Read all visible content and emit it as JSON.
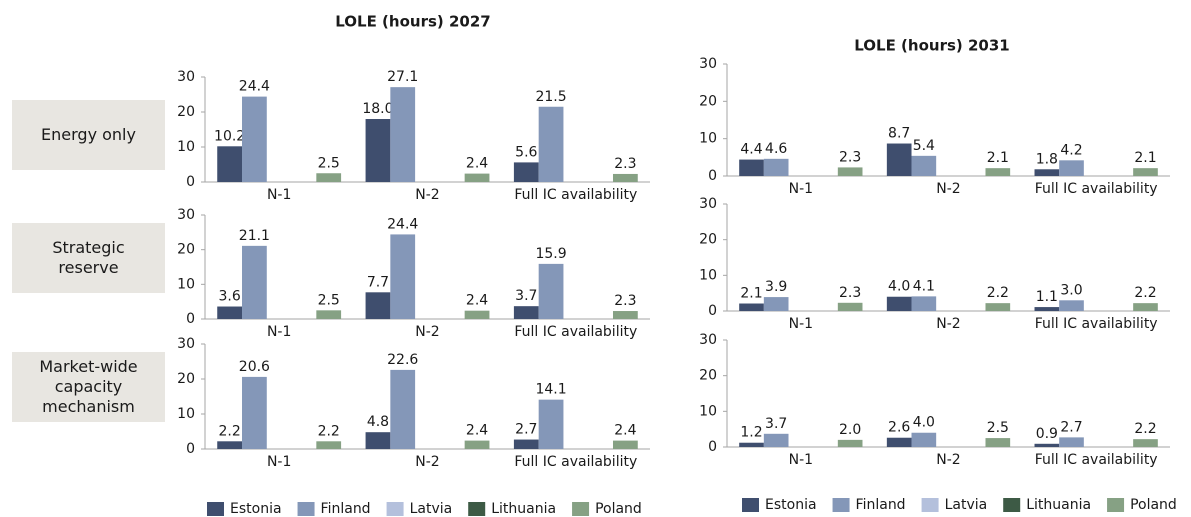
{
  "row_labels": [
    "Energy only",
    "Strategic reserve",
    "Market-wide capacity mechanism"
  ],
  "chart_data": [
    {
      "type": "bar",
      "title": "LOLE (hours) 2027",
      "categories": [
        "N-1",
        "N-2",
        "Full IC availability"
      ],
      "ylim": [
        0,
        30
      ],
      "yticks": [
        0,
        10,
        20,
        30
      ],
      "series": [
        {
          "name": "Estonia",
          "color": "#3f4e6e",
          "values": [
            10.2,
            18.0,
            5.6
          ],
          "value_labels": [
            "10.2",
            "18.0",
            "5.6"
          ]
        },
        {
          "name": "Finland",
          "color": "#8497b8",
          "values": [
            24.4,
            27.1,
            21.5
          ],
          "value_labels": [
            "24.4",
            "27.1",
            "21.5"
          ]
        },
        {
          "name": "Latvia",
          "color": "#b4c0dc",
          "values": [
            null,
            null,
            null
          ]
        },
        {
          "name": "Lithuania",
          "color": "#3d5a45",
          "values": [
            null,
            null,
            null
          ]
        },
        {
          "name": "Poland",
          "color": "#86a184",
          "values": [
            2.5,
            2.4,
            2.3
          ],
          "value_labels": [
            "2.5",
            "2.4",
            "2.3"
          ]
        }
      ]
    },
    {
      "type": "bar",
      "categories": [
        "N-1",
        "N-2",
        "Full IC availability"
      ],
      "ylim": [
        0,
        30
      ],
      "yticks": [
        0,
        10,
        20,
        30
      ],
      "series": [
        {
          "name": "Estonia",
          "color": "#3f4e6e",
          "values": [
            3.6,
            7.7,
            3.7
          ],
          "value_labels": [
            "3.6",
            "7.7",
            "3.7"
          ]
        },
        {
          "name": "Finland",
          "color": "#8497b8",
          "values": [
            21.1,
            24.4,
            15.9
          ],
          "value_labels": [
            "21.1",
            "24.4",
            "15.9"
          ]
        },
        {
          "name": "Latvia",
          "color": "#b4c0dc",
          "values": [
            null,
            null,
            null
          ]
        },
        {
          "name": "Lithuania",
          "color": "#3d5a45",
          "values": [
            null,
            null,
            null
          ]
        },
        {
          "name": "Poland",
          "color": "#86a184",
          "values": [
            2.5,
            2.4,
            2.3
          ],
          "value_labels": [
            "2.5",
            "2.4",
            "2.3"
          ]
        }
      ]
    },
    {
      "type": "bar",
      "categories": [
        "N-1",
        "N-2",
        "Full IC availability"
      ],
      "ylim": [
        0,
        30
      ],
      "yticks": [
        0,
        10,
        20,
        30
      ],
      "legend": "bottom",
      "series": [
        {
          "name": "Estonia",
          "color": "#3f4e6e",
          "values": [
            2.2,
            4.8,
            2.7
          ],
          "value_labels": [
            "2.2",
            "4.8",
            "2.7"
          ]
        },
        {
          "name": "Finland",
          "color": "#8497b8",
          "values": [
            20.6,
            22.6,
            14.1
          ],
          "value_labels": [
            "20.6",
            "22.6",
            "14.1"
          ]
        },
        {
          "name": "Latvia",
          "color": "#b4c0dc",
          "values": [
            null,
            null,
            null
          ]
        },
        {
          "name": "Lithuania",
          "color": "#3d5a45",
          "values": [
            null,
            null,
            null
          ]
        },
        {
          "name": "Poland",
          "color": "#86a184",
          "values": [
            2.2,
            2.4,
            2.4
          ],
          "value_labels": [
            "2.2",
            "2.4",
            "2.4"
          ]
        }
      ]
    },
    {
      "type": "bar",
      "title": "LOLE (hours) 2031",
      "categories": [
        "N-1",
        "N-2",
        "Full IC availability"
      ],
      "ylim": [
        0,
        30
      ],
      "yticks": [
        0,
        10,
        20,
        30
      ],
      "series": [
        {
          "name": "Estonia",
          "color": "#3f4e6e",
          "values": [
            4.4,
            8.7,
            1.8
          ],
          "value_labels": [
            "4.4",
            "8.7",
            "1.8"
          ]
        },
        {
          "name": "Finland",
          "color": "#8497b8",
          "values": [
            4.6,
            5.4,
            4.2
          ],
          "value_labels": [
            "4.6",
            "5.4",
            "4.2"
          ]
        },
        {
          "name": "Latvia",
          "color": "#b4c0dc",
          "values": [
            null,
            null,
            null
          ]
        },
        {
          "name": "Lithuania",
          "color": "#3d5a45",
          "values": [
            null,
            null,
            null
          ]
        },
        {
          "name": "Poland",
          "color": "#86a184",
          "values": [
            2.3,
            2.1,
            2.1
          ],
          "value_labels": [
            "2.3",
            "2.1",
            "2.1"
          ]
        }
      ]
    },
    {
      "type": "bar",
      "categories": [
        "N-1",
        "N-2",
        "Full IC availability"
      ],
      "ylim": [
        0,
        30
      ],
      "yticks": [
        0,
        10,
        20,
        30
      ],
      "series": [
        {
          "name": "Estonia",
          "color": "#3f4e6e",
          "values": [
            2.1,
            4.0,
            1.1
          ],
          "value_labels": [
            "2.1",
            "4.0",
            "1.1"
          ]
        },
        {
          "name": "Finland",
          "color": "#8497b8",
          "values": [
            3.9,
            4.1,
            3.0
          ],
          "value_labels": [
            "3.9",
            "4.1",
            "3.0"
          ]
        },
        {
          "name": "Latvia",
          "color": "#b4c0dc",
          "values": [
            null,
            null,
            null
          ]
        },
        {
          "name": "Lithuania",
          "color": "#3d5a45",
          "values": [
            null,
            null,
            null
          ]
        },
        {
          "name": "Poland",
          "color": "#86a184",
          "values": [
            2.3,
            2.2,
            2.2
          ],
          "value_labels": [
            "2.3",
            "2.2",
            "2.2"
          ]
        }
      ]
    },
    {
      "type": "bar",
      "categories": [
        "N-1",
        "N-2",
        "Full IC availability"
      ],
      "ylim": [
        0,
        30
      ],
      "yticks": [
        0,
        10,
        20,
        30
      ],
      "legend": "bottom",
      "series": [
        {
          "name": "Estonia",
          "color": "#3f4e6e",
          "values": [
            1.2,
            2.6,
            0.9
          ],
          "value_labels": [
            "1.2",
            "2.6",
            "0.9"
          ]
        },
        {
          "name": "Finland",
          "color": "#8497b8",
          "values": [
            3.7,
            4.0,
            2.7
          ],
          "value_labels": [
            "3.7",
            "4.0",
            "2.7"
          ]
        },
        {
          "name": "Latvia",
          "color": "#b4c0dc",
          "values": [
            null,
            null,
            null
          ]
        },
        {
          "name": "Lithuania",
          "color": "#3d5a45",
          "values": [
            null,
            null,
            null
          ]
        },
        {
          "name": "Poland",
          "color": "#86a184",
          "values": [
            2.0,
            2.5,
            2.2
          ],
          "value_labels": [
            "2.0",
            "2.5",
            "2.2"
          ]
        }
      ]
    }
  ]
}
